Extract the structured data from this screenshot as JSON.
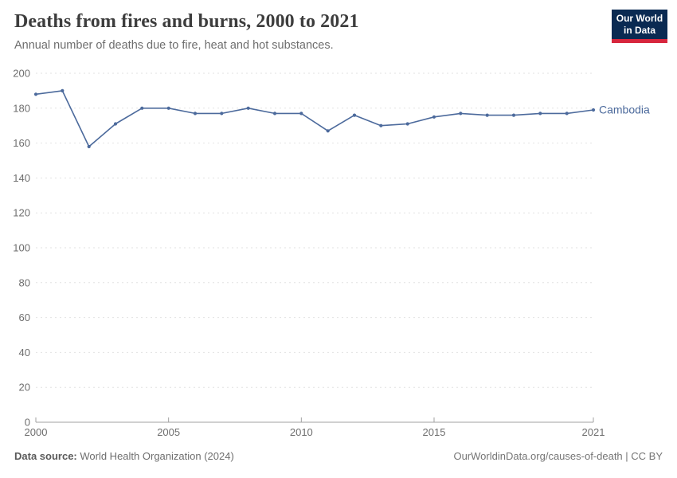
{
  "header": {
    "title": "Deaths from fires and burns, 2000 to 2021",
    "subtitle": "Annual number of deaths due to fire, heat and hot substances."
  },
  "logo": {
    "line1": "Our World",
    "line2": "in Data",
    "bg_color": "#0a2a52",
    "accent_color": "#d7263d"
  },
  "chart_data": {
    "type": "line",
    "title": "Deaths from fires and burns, 2000 to 2021",
    "x": [
      2000,
      2001,
      2002,
      2003,
      2004,
      2005,
      2006,
      2007,
      2008,
      2009,
      2010,
      2011,
      2012,
      2013,
      2014,
      2015,
      2016,
      2017,
      2018,
      2019,
      2020,
      2021
    ],
    "series": [
      {
        "name": "Cambodia",
        "color": "#4c6a9c",
        "values": [
          188,
          190,
          158,
          171,
          180,
          180,
          177,
          177,
          180,
          177,
          177,
          167,
          176,
          170,
          171,
          175,
          177,
          176,
          176,
          177,
          177,
          179
        ]
      }
    ],
    "ylim": [
      0,
      200
    ],
    "yticks": [
      0,
      20,
      40,
      60,
      80,
      100,
      120,
      140,
      160,
      180,
      200
    ],
    "xticks": [
      2000,
      2005,
      2010,
      2015,
      2021
    ],
    "grid": "dashed-horizontal",
    "legend": "end-of-line-label",
    "colors": {
      "grid": "#e2e2e2",
      "axis": "#a1a1a1",
      "tick_label": "#6e6e6e"
    }
  },
  "footer": {
    "data_source_label": "Data source:",
    "data_source_value": " World Health Organization (2024)",
    "license_text": "OurWorldinData.org/causes-of-death | CC BY"
  }
}
